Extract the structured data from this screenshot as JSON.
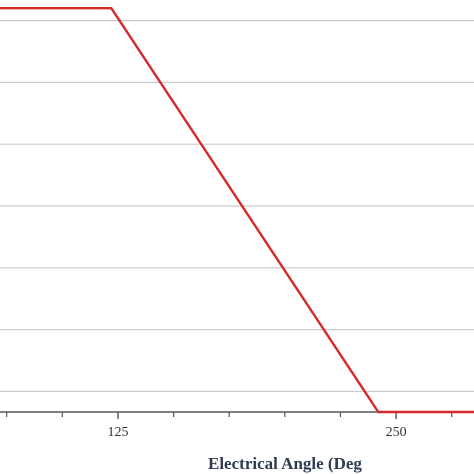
{
  "chart_data": {
    "type": "line",
    "title": "",
    "xlabel": "Electrical Angle (Deg",
    "ylabel": "",
    "xlim": [
      72,
      285
    ],
    "ylim": [
      0,
      1.0
    ],
    "x_ticks": [
      {
        "value": 125,
        "label": "125"
      },
      {
        "value": 250,
        "label": "250"
      }
    ],
    "x_minor_ticks": [
      75,
      100,
      150,
      175,
      200,
      225,
      275
    ],
    "y_gridlines": [
      0.05,
      0.2,
      0.35,
      0.5,
      0.65,
      0.8,
      0.95
    ],
    "grid": true,
    "legend": "none",
    "colors": {
      "line": "#d42a2a",
      "grid": "#cccccc",
      "axis": "#555555"
    },
    "series": [
      {
        "x": [
          72,
          122,
          242,
          285
        ],
        "y": [
          0.98,
          0.98,
          0.0,
          0.0
        ]
      }
    ]
  }
}
